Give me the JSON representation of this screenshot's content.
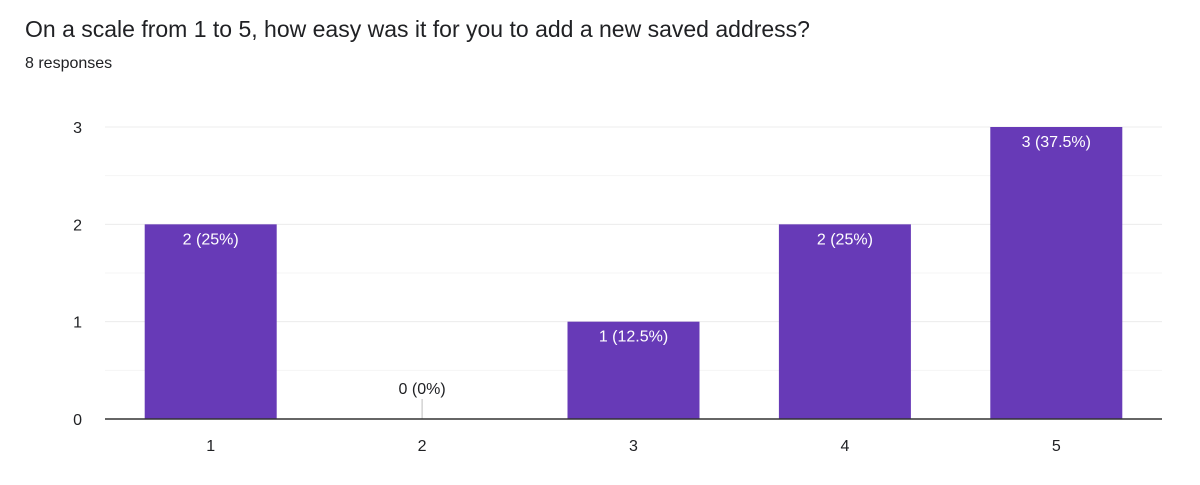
{
  "question": {
    "title": "On a scale from 1 to 5, how easy was it for you to add a new saved address?",
    "response_count": "8 responses"
  },
  "colors": {
    "bar": "#673ab7",
    "grid": "#ececec",
    "axis": "#333333",
    "text": "#202124",
    "bar_label": "#ffffff",
    "outside_label": "#202124"
  },
  "chart_data": {
    "type": "bar",
    "categories": [
      "1",
      "2",
      "3",
      "4",
      "5"
    ],
    "values": [
      2,
      0,
      1,
      2,
      3
    ],
    "data_labels": [
      "2 (25%)",
      "0 (0%)",
      "1 (12.5%)",
      "2 (25%)",
      "3 (37.5%)"
    ],
    "y_ticks": [
      "0",
      "1",
      "2",
      "3"
    ],
    "ylim": [
      0,
      3
    ],
    "minor_gridlines": true,
    "title": "",
    "xlabel": "",
    "ylabel": ""
  }
}
